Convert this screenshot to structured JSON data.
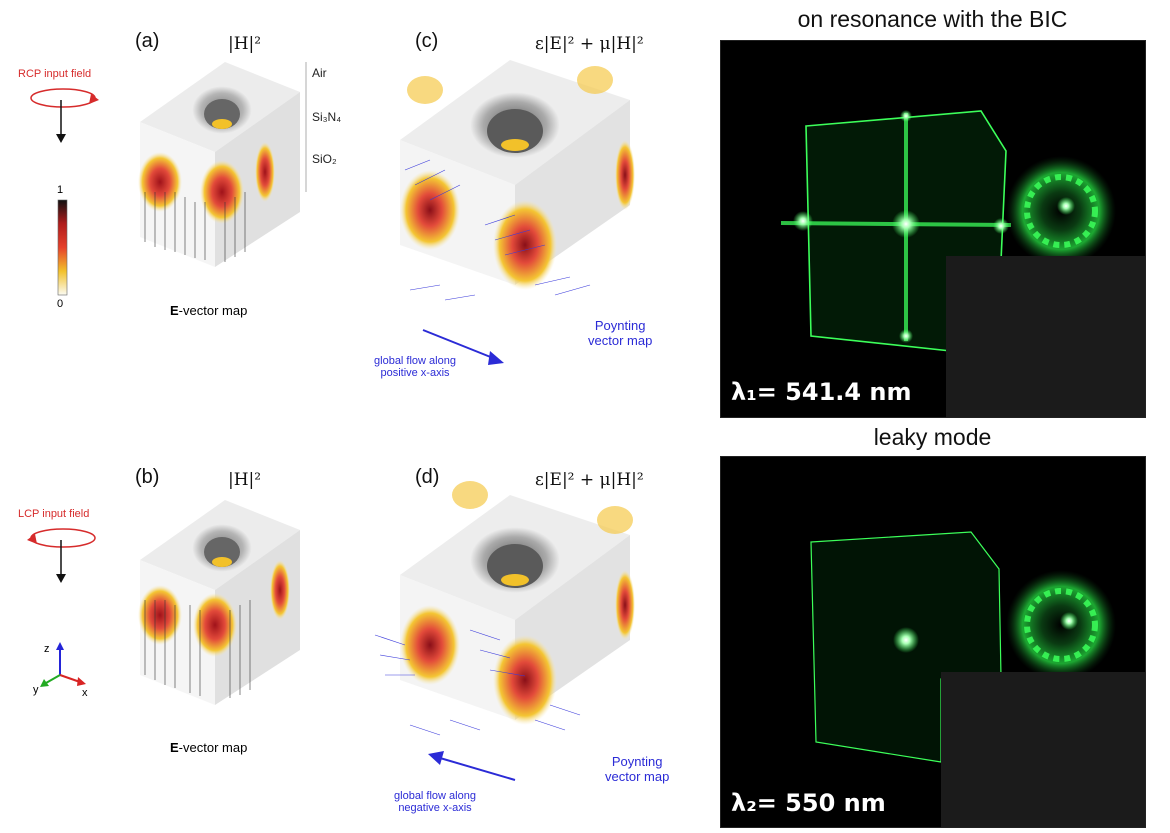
{
  "headings": {
    "top": "on resonance with the BIC",
    "bottom": "leaky mode"
  },
  "panels": {
    "a": {
      "letter": "(a)",
      "quantity": "|H|²",
      "caption_bold": "E",
      "caption_rest": "-vector map"
    },
    "b": {
      "letter": "(b)",
      "quantity": "|H|²",
      "caption_bold": "E",
      "caption_rest": "-vector map"
    },
    "c": {
      "letter": "(c)",
      "quantity": "ε|E|² + μ|H|²",
      "map_label_line1": "Poynting",
      "map_label_line2": "vector map",
      "flow_line1": "global flow along",
      "flow_line2": "positive x-axis"
    },
    "d": {
      "letter": "(d)",
      "quantity": "ε|E|² + μ|H|²",
      "map_label_line1": "Poynting",
      "map_label_line2": "vector map",
      "flow_line1": "global flow along",
      "flow_line2": "negative x-axis"
    }
  },
  "layers": {
    "air": "Air",
    "si3n4": "Si₃N₄",
    "sio2": "SiO₂"
  },
  "inputs": {
    "rcp": "RCP input field",
    "lcp": "LCP input field"
  },
  "colorbar": {
    "max": "1",
    "min": "0"
  },
  "axes": {
    "z": "z",
    "y": "y",
    "x": "x"
  },
  "wavelengths": {
    "l1": "λ₁= 541.4 nm",
    "l2": "λ₂= 550 nm"
  },
  "colors": {
    "red_annotation": "#d62b2b",
    "blue_annotation": "#2b2bd6",
    "laser_green": "#3cff5a"
  }
}
